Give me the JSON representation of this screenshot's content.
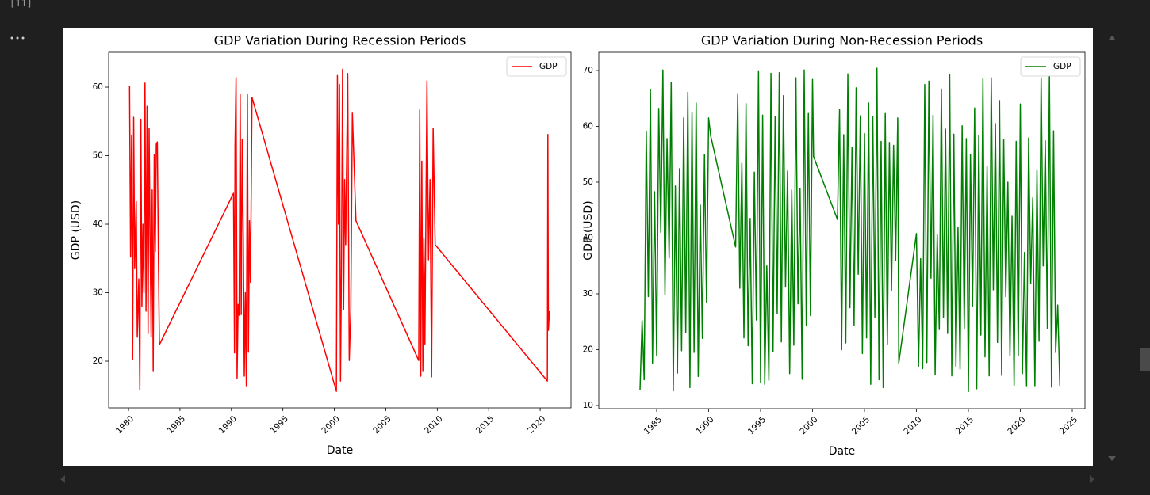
{
  "cell": {
    "execution_count": "[11]"
  },
  "chart_data": [
    {
      "type": "line",
      "title": "GDP Variation During Recession Periods",
      "xlabel": "Date",
      "ylabel": "GDP (USD)",
      "x": [
        1980.1,
        1980.2,
        1980.3,
        1980.4,
        1980.5,
        1980.6,
        1980.75,
        1980.85,
        1981.0,
        1981.1,
        1981.2,
        1981.3,
        1981.4,
        1981.5,
        1981.6,
        1981.7,
        1981.8,
        1981.9,
        1982.0,
        1982.1,
        1982.2,
        1982.3,
        1982.4,
        1982.5,
        1982.6,
        1982.7,
        1982.8,
        1982.9,
        1983.0,
        1990.2,
        1990.3,
        1990.35,
        1990.45,
        1990.55,
        1990.65,
        1990.75,
        1990.85,
        1990.95,
        1991.05,
        1991.15,
        1991.25,
        1991.35,
        1991.45,
        1991.55,
        1991.65,
        1991.75,
        1991.85,
        1992.0,
        2000.2,
        2000.3,
        2000.4,
        2000.5,
        2000.6,
        2000.7,
        2000.8,
        2000.9,
        2001.0,
        2001.1,
        2001.3,
        2001.45,
        2001.6,
        2001.75,
        2002.1,
        2008.2,
        2008.3,
        2008.4,
        2008.5,
        2008.6,
        2008.7,
        2008.8,
        2009.0,
        2009.15,
        2009.3,
        2009.45,
        2009.6,
        2009.8,
        2020.7,
        2020.75,
        2020.8,
        2020.9
      ],
      "series": [
        {
          "name": "GDP",
          "color": "#ff0000",
          "values": [
            60.2,
            35.2,
            53,
            20.3,
            55.6,
            33.5,
            43.3,
            23.5,
            32,
            15.8,
            55.3,
            28,
            40,
            30,
            60.6,
            27.3,
            57.2,
            24,
            54,
            37,
            23.5,
            45,
            18.5,
            50.2,
            36,
            51.7,
            52,
            36,
            22.4,
            44.5,
            21.2,
            51.5,
            61.4,
            17.5,
            28.3,
            26.7,
            58.9,
            26.8,
            52.4,
            38.5,
            17.8,
            30,
            16.3,
            58.9,
            21.3,
            40.5,
            31.5,
            58.5,
            15.6,
            61.7,
            40,
            60.4,
            17.1,
            35,
            62.6,
            27.5,
            46.5,
            37,
            62,
            20.1,
            27.4,
            56.2,
            40.5,
            20.1,
            56.7,
            17.8,
            49.2,
            18.5,
            38,
            22.5,
            60.9,
            34.8,
            46.5,
            17.7,
            54,
            37,
            17.1,
            53.1,
            24.5,
            27.3
          ]
        }
      ],
      "xlim": [
        1978.07,
        2023.0
      ],
      "ylim": [
        13.18,
        65.09
      ],
      "xticks": [
        1980,
        1985,
        1990,
        1995,
        2000,
        2005,
        2010,
        2015,
        2020
      ],
      "yticks": [
        20,
        30,
        40,
        50,
        60
      ],
      "legend": "upper right"
    },
    {
      "type": "line",
      "title": "GDP Variation During Non-Recession Periods",
      "xlabel": "Date",
      "ylabel": "GDP (USD)",
      "x": [
        1983.4,
        1983.6,
        1983.8,
        1984.0,
        1984.2,
        1984.4,
        1984.6,
        1984.8,
        1985.0,
        1985.2,
        1985.4,
        1985.6,
        1985.8,
        1986.0,
        1986.2,
        1986.4,
        1986.6,
        1986.8,
        1987.0,
        1987.2,
        1987.4,
        1987.6,
        1987.8,
        1988.0,
        1988.2,
        1988.4,
        1988.6,
        1988.8,
        1989.0,
        1989.2,
        1989.4,
        1989.6,
        1989.8,
        1990.0,
        1990.2,
        1992.6,
        1992.8,
        1993.0,
        1993.2,
        1993.4,
        1993.6,
        1993.8,
        1994.0,
        1994.2,
        1994.4,
        1994.6,
        1994.8,
        1995.0,
        1995.2,
        1995.4,
        1995.6,
        1995.8,
        1996.0,
        1996.2,
        1996.4,
        1996.6,
        1996.8,
        1997.0,
        1997.2,
        1997.4,
        1997.6,
        1997.8,
        1998.0,
        1998.2,
        1998.4,
        1998.6,
        1998.8,
        1999.0,
        1999.2,
        1999.4,
        1999.6,
        1999.8,
        2000.0,
        2000.1,
        2002.4,
        2002.6,
        2002.8,
        2003.0,
        2003.2,
        2003.4,
        2003.6,
        2003.8,
        2004.0,
        2004.2,
        2004.4,
        2004.6,
        2004.8,
        2005.0,
        2005.2,
        2005.4,
        2005.6,
        2005.8,
        2006.0,
        2006.2,
        2006.4,
        2006.6,
        2006.8,
        2007.0,
        2007.2,
        2007.4,
        2007.6,
        2007.8,
        2008.0,
        2008.2,
        2008.3,
        2010.0,
        2010.2,
        2010.4,
        2010.6,
        2010.8,
        2011.0,
        2011.2,
        2011.4,
        2011.6,
        2011.8,
        2012.0,
        2012.2,
        2012.4,
        2012.6,
        2012.8,
        2013.0,
        2013.2,
        2013.4,
        2013.6,
        2013.8,
        2014.0,
        2014.2,
        2014.4,
        2014.6,
        2014.8,
        2015.0,
        2015.2,
        2015.4,
        2015.6,
        2015.8,
        2016.0,
        2016.2,
        2016.4,
        2016.6,
        2016.8,
        2017.0,
        2017.2,
        2017.4,
        2017.6,
        2017.8,
        2018.0,
        2018.2,
        2018.4,
        2018.6,
        2018.8,
        2019.0,
        2019.2,
        2019.4,
        2019.6,
        2019.8,
        2020.0,
        2020.2,
        2020.4,
        2020.6,
        2020.8,
        2021.0,
        2021.2,
        2021.4,
        2021.6,
        2021.8,
        2022.0,
        2022.2,
        2022.4,
        2022.6,
        2022.8,
        2023.0,
        2023.2,
        2023.4,
        2023.6,
        2023.8
      ],
      "series": [
        {
          "name": "GDP",
          "color": "#008000",
          "values": [
            12.8,
            25.2,
            14.6,
            59.1,
            29.5,
            66.6,
            17.6,
            48.3,
            19,
            63.2,
            41,
            70.1,
            29.9,
            57.8,
            36.4,
            67.9,
            12.6,
            49.3,
            15.8,
            52.4,
            19.8,
            61.5,
            23.1,
            66.1,
            13.2,
            62.4,
            19.5,
            64.2,
            15.2,
            45.9,
            22,
            55,
            28.5,
            61.5,
            58.3,
            38.4,
            65.7,
            31,
            53.4,
            22.1,
            64.1,
            20.7,
            43.5,
            13.9,
            51.8,
            25.3,
            69.8,
            14.1,
            62,
            13.8,
            35,
            14.5,
            69.5,
            19.6,
            61.7,
            26.5,
            69.6,
            21.4,
            65.5,
            31.2,
            52,
            15.7,
            48.6,
            20.8,
            68.7,
            28.2,
            48.9,
            14.7,
            70.1,
            24.3,
            62.3,
            26.1,
            68.4,
            54.6,
            43.3,
            63,
            20,
            58.5,
            21.2,
            69.4,
            27.5,
            56.2,
            24.3,
            66.9,
            33.5,
            61.9,
            19.3,
            58.7,
            22.1,
            64.2,
            13.8,
            61.7,
            25.8,
            70.4,
            14.6,
            57.3,
            13.2,
            62.3,
            21,
            57.1,
            30.6,
            56.6,
            36,
            61.5,
            17.6,
            40.8,
            17,
            36.3,
            16.6,
            67.5,
            17.7,
            68.1,
            32.8,
            62,
            15.5,
            40.7,
            23.6,
            66.7,
            25.7,
            59.5,
            22.9,
            69.3,
            15.3,
            58.6,
            17,
            41.9,
            16.5,
            60.1,
            23.8,
            57.8,
            12.5,
            54.9,
            27.8,
            63.3,
            13,
            58.4,
            22.6,
            68.5,
            18.7,
            52.8,
            15.3,
            68.7,
            30.7,
            60.5,
            21.3,
            64.6,
            15.4,
            57.6,
            29.5,
            50,
            18.9,
            43.9,
            13.5,
            57.3,
            19,
            64,
            15.7,
            37.4,
            13.4,
            57.9,
            31.8,
            47.2,
            13.4,
            52.1,
            21.5,
            68.7,
            35,
            57.4,
            23.8,
            69.4,
            13.3,
            59.2,
            19.5,
            28,
            13.5
          ]
        }
      ],
      "xlim": [
        1979.43,
        2026.22
      ],
      "ylim": [
        9.43,
        73.26
      ],
      "xticks": [
        1985,
        1990,
        1995,
        2000,
        2005,
        2010,
        2015,
        2020,
        2025
      ],
      "yticks": [
        10,
        20,
        30,
        40,
        50,
        60,
        70
      ],
      "legend": "upper right"
    }
  ]
}
